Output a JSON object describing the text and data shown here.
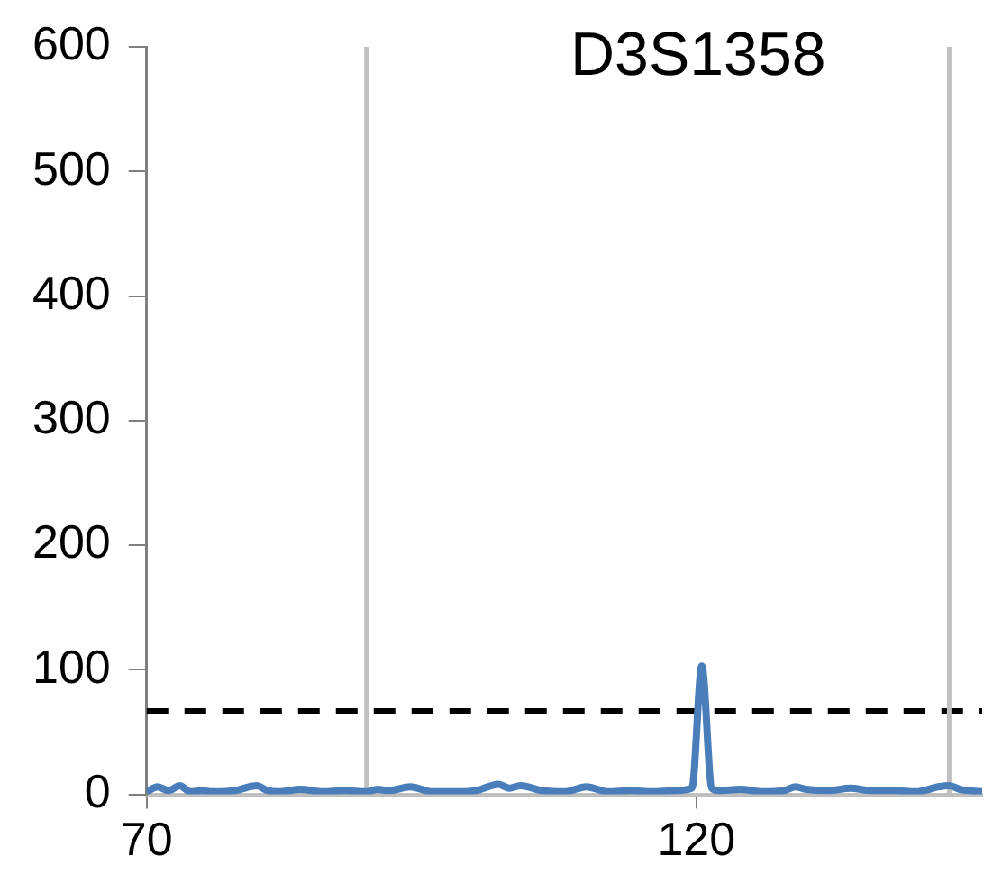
{
  "chart_data": {
    "type": "line",
    "title": "D3S1358",
    "series": [
      {
        "color": "#4a7ebb",
        "x": [
          70,
          71,
          72,
          73,
          74,
          75,
          76,
          78,
          80,
          81,
          82,
          84,
          86,
          88,
          90,
          91,
          92,
          94,
          96,
          98,
          100,
          101,
          102,
          103,
          104,
          106,
          108,
          110,
          112,
          114,
          116,
          118,
          119.6,
          120.5,
          121.4,
          122,
          124,
          126,
          128,
          129,
          130,
          132,
          134,
          136,
          138,
          140,
          142,
          143,
          144,
          146
        ],
        "values": [
          2,
          6,
          3,
          7,
          2,
          3,
          2,
          3,
          7,
          3,
          2,
          4,
          2,
          3,
          2,
          4,
          3,
          6,
          2,
          2,
          3,
          6,
          8,
          5,
          7,
          3,
          2,
          6,
          2,
          3,
          2,
          3,
          5,
          103,
          5,
          3,
          4,
          2,
          3,
          6,
          4,
          3,
          5,
          3,
          3,
          2,
          6,
          7,
          4,
          2
        ]
      }
    ],
    "xlim": [
      70,
      146
    ],
    "xticks": [
      70,
      120
    ],
    "ylim": [
      0,
      600
    ],
    "yticks": [
      0,
      100,
      200,
      300,
      400,
      500,
      600
    ],
    "ref_lines": [
      {
        "axis": "y",
        "value": 67,
        "color": "#000000",
        "line_style": "dashed"
      },
      {
        "axis": "x",
        "value": 90,
        "color": "#bfbfbf",
        "line_style": "solid"
      },
      {
        "axis": "x",
        "value": 143,
        "color": "#bfbfbf",
        "line_style": "solid"
      }
    ],
    "grid": false,
    "legend": false
  }
}
